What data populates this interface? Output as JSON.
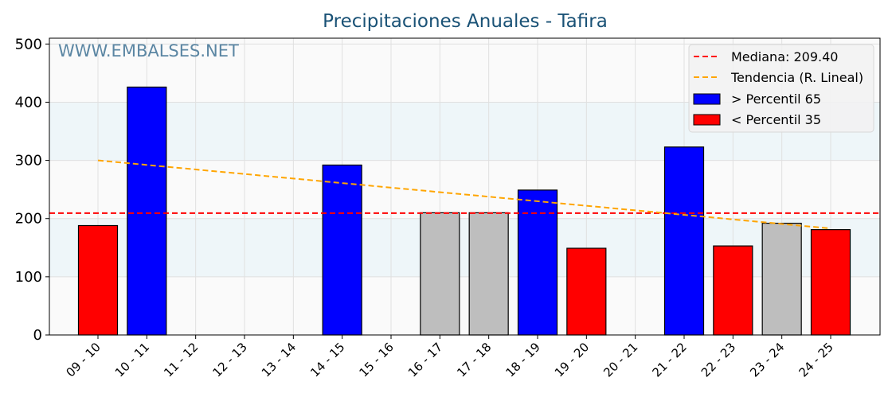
{
  "chart_data": {
    "type": "bar",
    "title": "Precipitaciones Anuales - Tafira",
    "watermark": "WWW.EMBALSES.NET",
    "xlabel": "",
    "ylabel": "",
    "ylim": [
      0,
      510
    ],
    "yticks": [
      0,
      100,
      200,
      300,
      400,
      500
    ],
    "categories": [
      "09 - 10",
      "10 - 11",
      "11 - 12",
      "12 - 13",
      "13 - 14",
      "14 - 15",
      "15 - 16",
      "16 - 17",
      "17 - 18",
      "18 - 19",
      "19 - 20",
      "20 - 21",
      "21 - 22",
      "22 - 23",
      "23 - 24",
      "24 - 25"
    ],
    "values": [
      188,
      426,
      null,
      null,
      null,
      292,
      null,
      210,
      210,
      249,
      149,
      null,
      323,
      153,
      192,
      181
    ],
    "classes": [
      "low",
      "high",
      null,
      null,
      null,
      "high",
      null,
      "mid",
      "mid",
      "high",
      "low",
      null,
      "high",
      "low",
      "mid",
      "low"
    ],
    "median": 209.4,
    "trend": {
      "start": 300,
      "end": 183
    },
    "colors": {
      "high": "#0000ff",
      "low": "#ff0000",
      "mid": "#bebebe",
      "median": "#ff0000",
      "trend": "#ffa500",
      "title": "#1a5276",
      "band": "#eef6f9"
    },
    "legend": {
      "position": "top-right",
      "entries": [
        "Mediana: 209.40",
        "Tendencia (R. Lineal)",
        " > Percentil 65",
        " < Percentil 35"
      ]
    }
  }
}
